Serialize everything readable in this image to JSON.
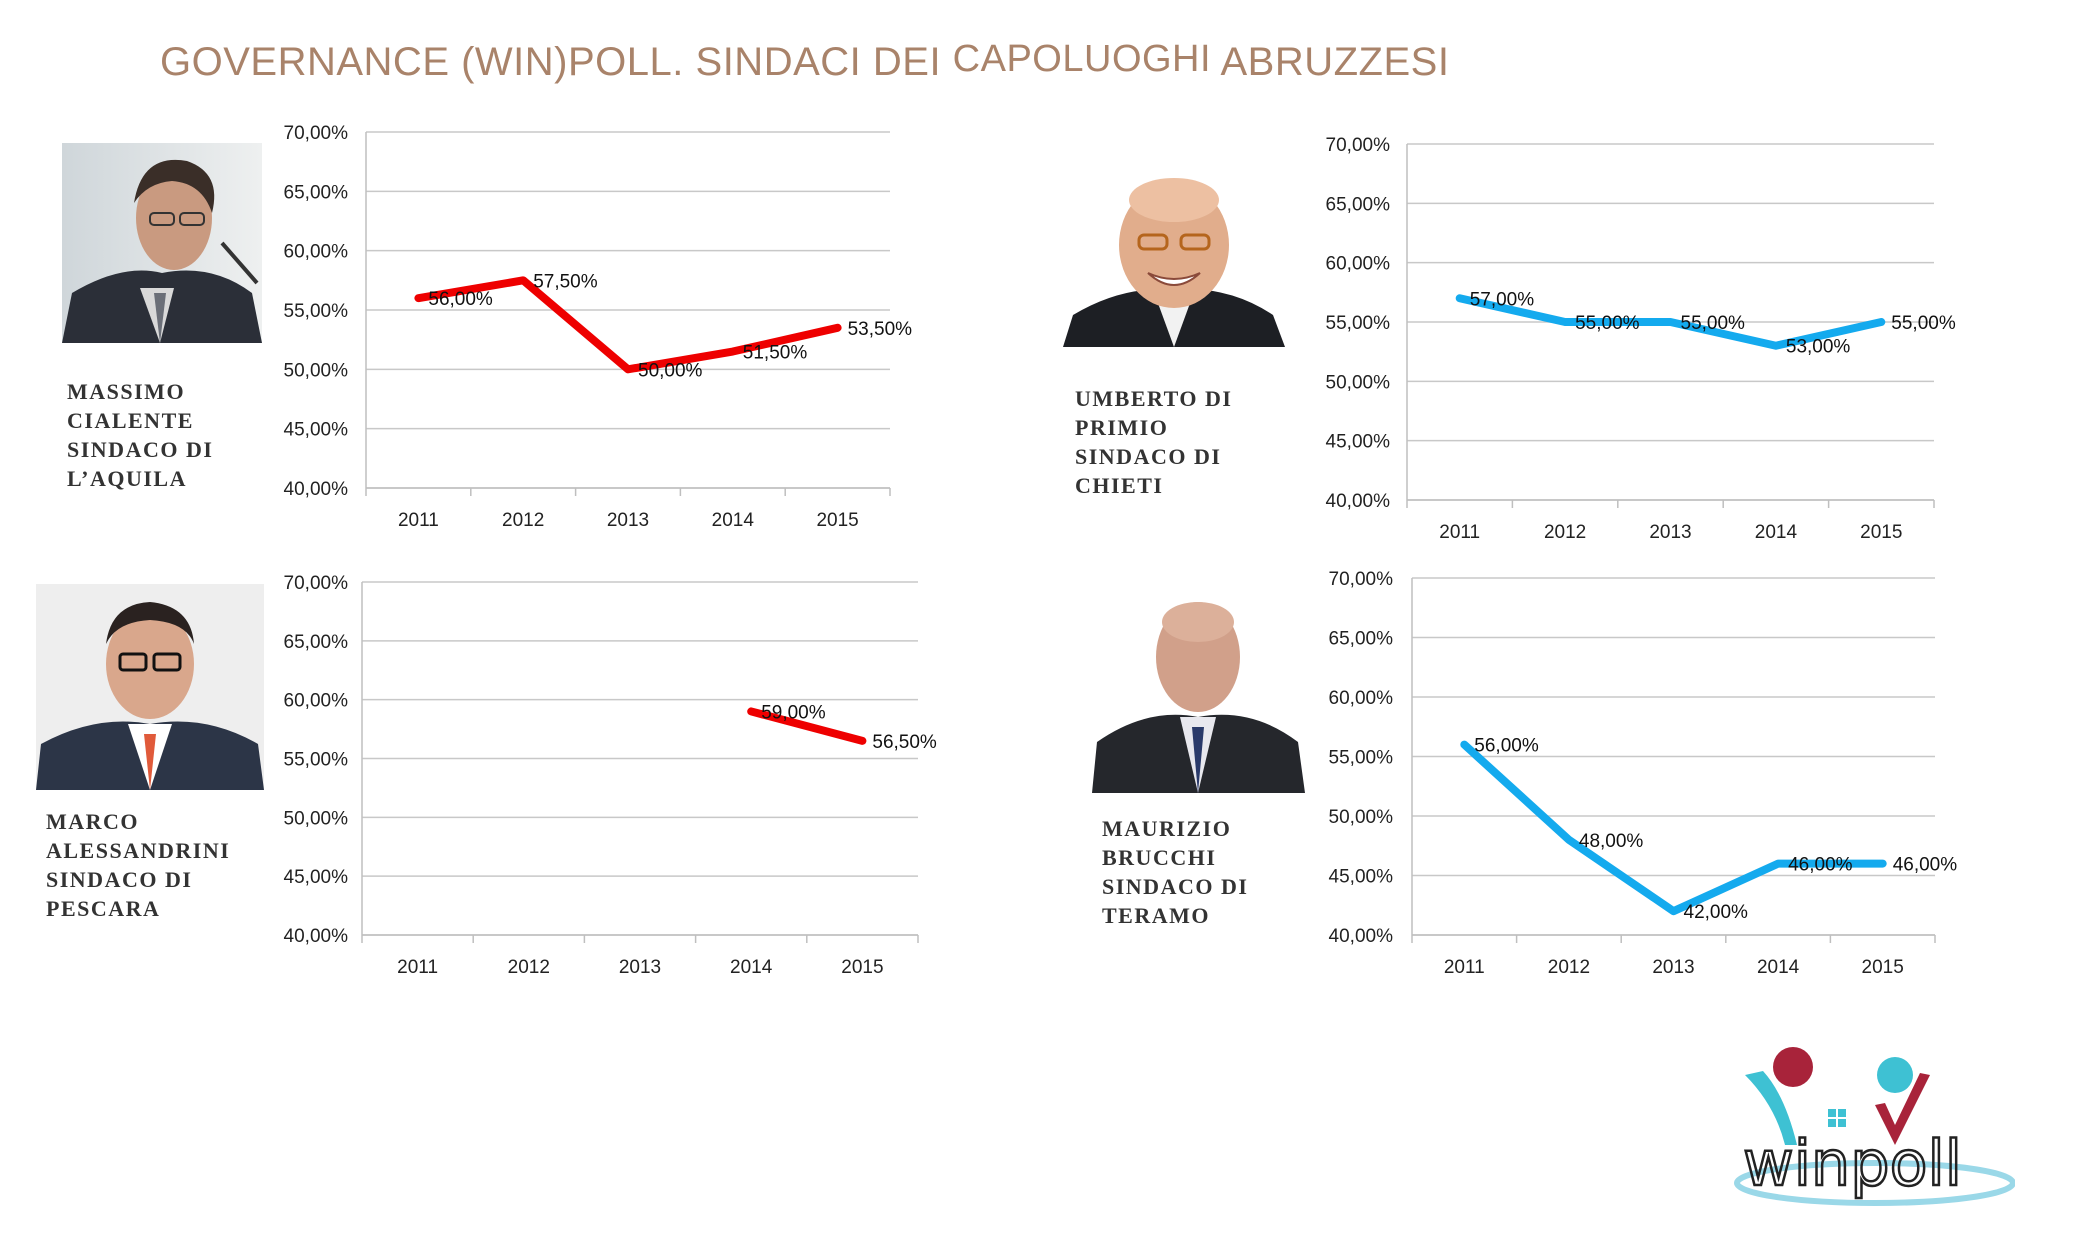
{
  "title": {
    "part1": "GOVERNANCE (WIN)POLL. SINDACI DEI ",
    "part2": "CAPOLUOGHI",
    "part3": " ABRUZZESI"
  },
  "colors": {
    "red_series": "#ee0000",
    "blue_series": "#14aaee",
    "title": "#a9836a"
  },
  "mayors": [
    {
      "lines": [
        "MASSIMO",
        "CIALENTE",
        "SINDACO DI",
        "L’AQUILA"
      ]
    },
    {
      "lines": [
        "UMBERTO DI",
        "PRIMIO",
        "SINDACO DI",
        "CHIETI"
      ]
    },
    {
      "lines": [
        "MARCO",
        "ALESSANDRINI",
        "SINDACO DI",
        "PESCARA"
      ]
    },
    {
      "lines": [
        "MAURIZIO",
        "BRUCCHI",
        "SINDACO DI",
        "TERAMO"
      ]
    }
  ],
  "chart_data": [
    {
      "type": "line",
      "categories": [
        "2011",
        "2012",
        "2013",
        "2014",
        "2015"
      ],
      "values": [
        56.0,
        57.5,
        50.0,
        51.5,
        53.5
      ],
      "labels": [
        "56,00%",
        "57,50%",
        "50,00%",
        "51,50%",
        "53,50%"
      ],
      "yticks": [
        "40,00%",
        "45,00%",
        "50,00%",
        "55,00%",
        "60,00%",
        "65,00%",
        "70,00%"
      ],
      "ylim": [
        40,
        70
      ],
      "color": "#ee0000",
      "grid": true
    },
    {
      "type": "line",
      "categories": [
        "2011",
        "2012",
        "2013",
        "2014",
        "2015"
      ],
      "values": [
        57.0,
        55.0,
        55.0,
        53.0,
        55.0
      ],
      "labels": [
        "57,00%",
        "55,00%",
        "55,00%",
        "53,00%",
        "55,00%"
      ],
      "yticks": [
        "40,00%",
        "45,00%",
        "50,00%",
        "55,00%",
        "60,00%",
        "65,00%",
        "70,00%"
      ],
      "ylim": [
        40,
        70
      ],
      "color": "#14aaee",
      "grid": true
    },
    {
      "type": "line",
      "categories": [
        "2011",
        "2012",
        "2013",
        "2014",
        "2015"
      ],
      "values": [
        null,
        null,
        null,
        59.0,
        56.5
      ],
      "labels": [
        "",
        "",
        "",
        "59,00%",
        "56,50%"
      ],
      "yticks": [
        "40,00%",
        "45,00%",
        "50,00%",
        "55,00%",
        "60,00%",
        "65,00%",
        "70,00%"
      ],
      "ylim": [
        40,
        70
      ],
      "color": "#ee0000",
      "grid": true
    },
    {
      "type": "line",
      "categories": [
        "2011",
        "2012",
        "2013",
        "2014",
        "2015"
      ],
      "values": [
        56.0,
        48.0,
        42.0,
        46.0,
        46.0
      ],
      "labels": [
        "56,00%",
        "48,00%",
        "42,00%",
        "46,00%",
        "46,00%"
      ],
      "yticks": [
        "40,00%",
        "45,00%",
        "50,00%",
        "55,00%",
        "60,00%",
        "65,00%",
        "70,00%"
      ],
      "ylim": [
        40,
        70
      ],
      "color": "#14aaee",
      "grid": true
    }
  ],
  "logo": {
    "text": "winpoll"
  }
}
